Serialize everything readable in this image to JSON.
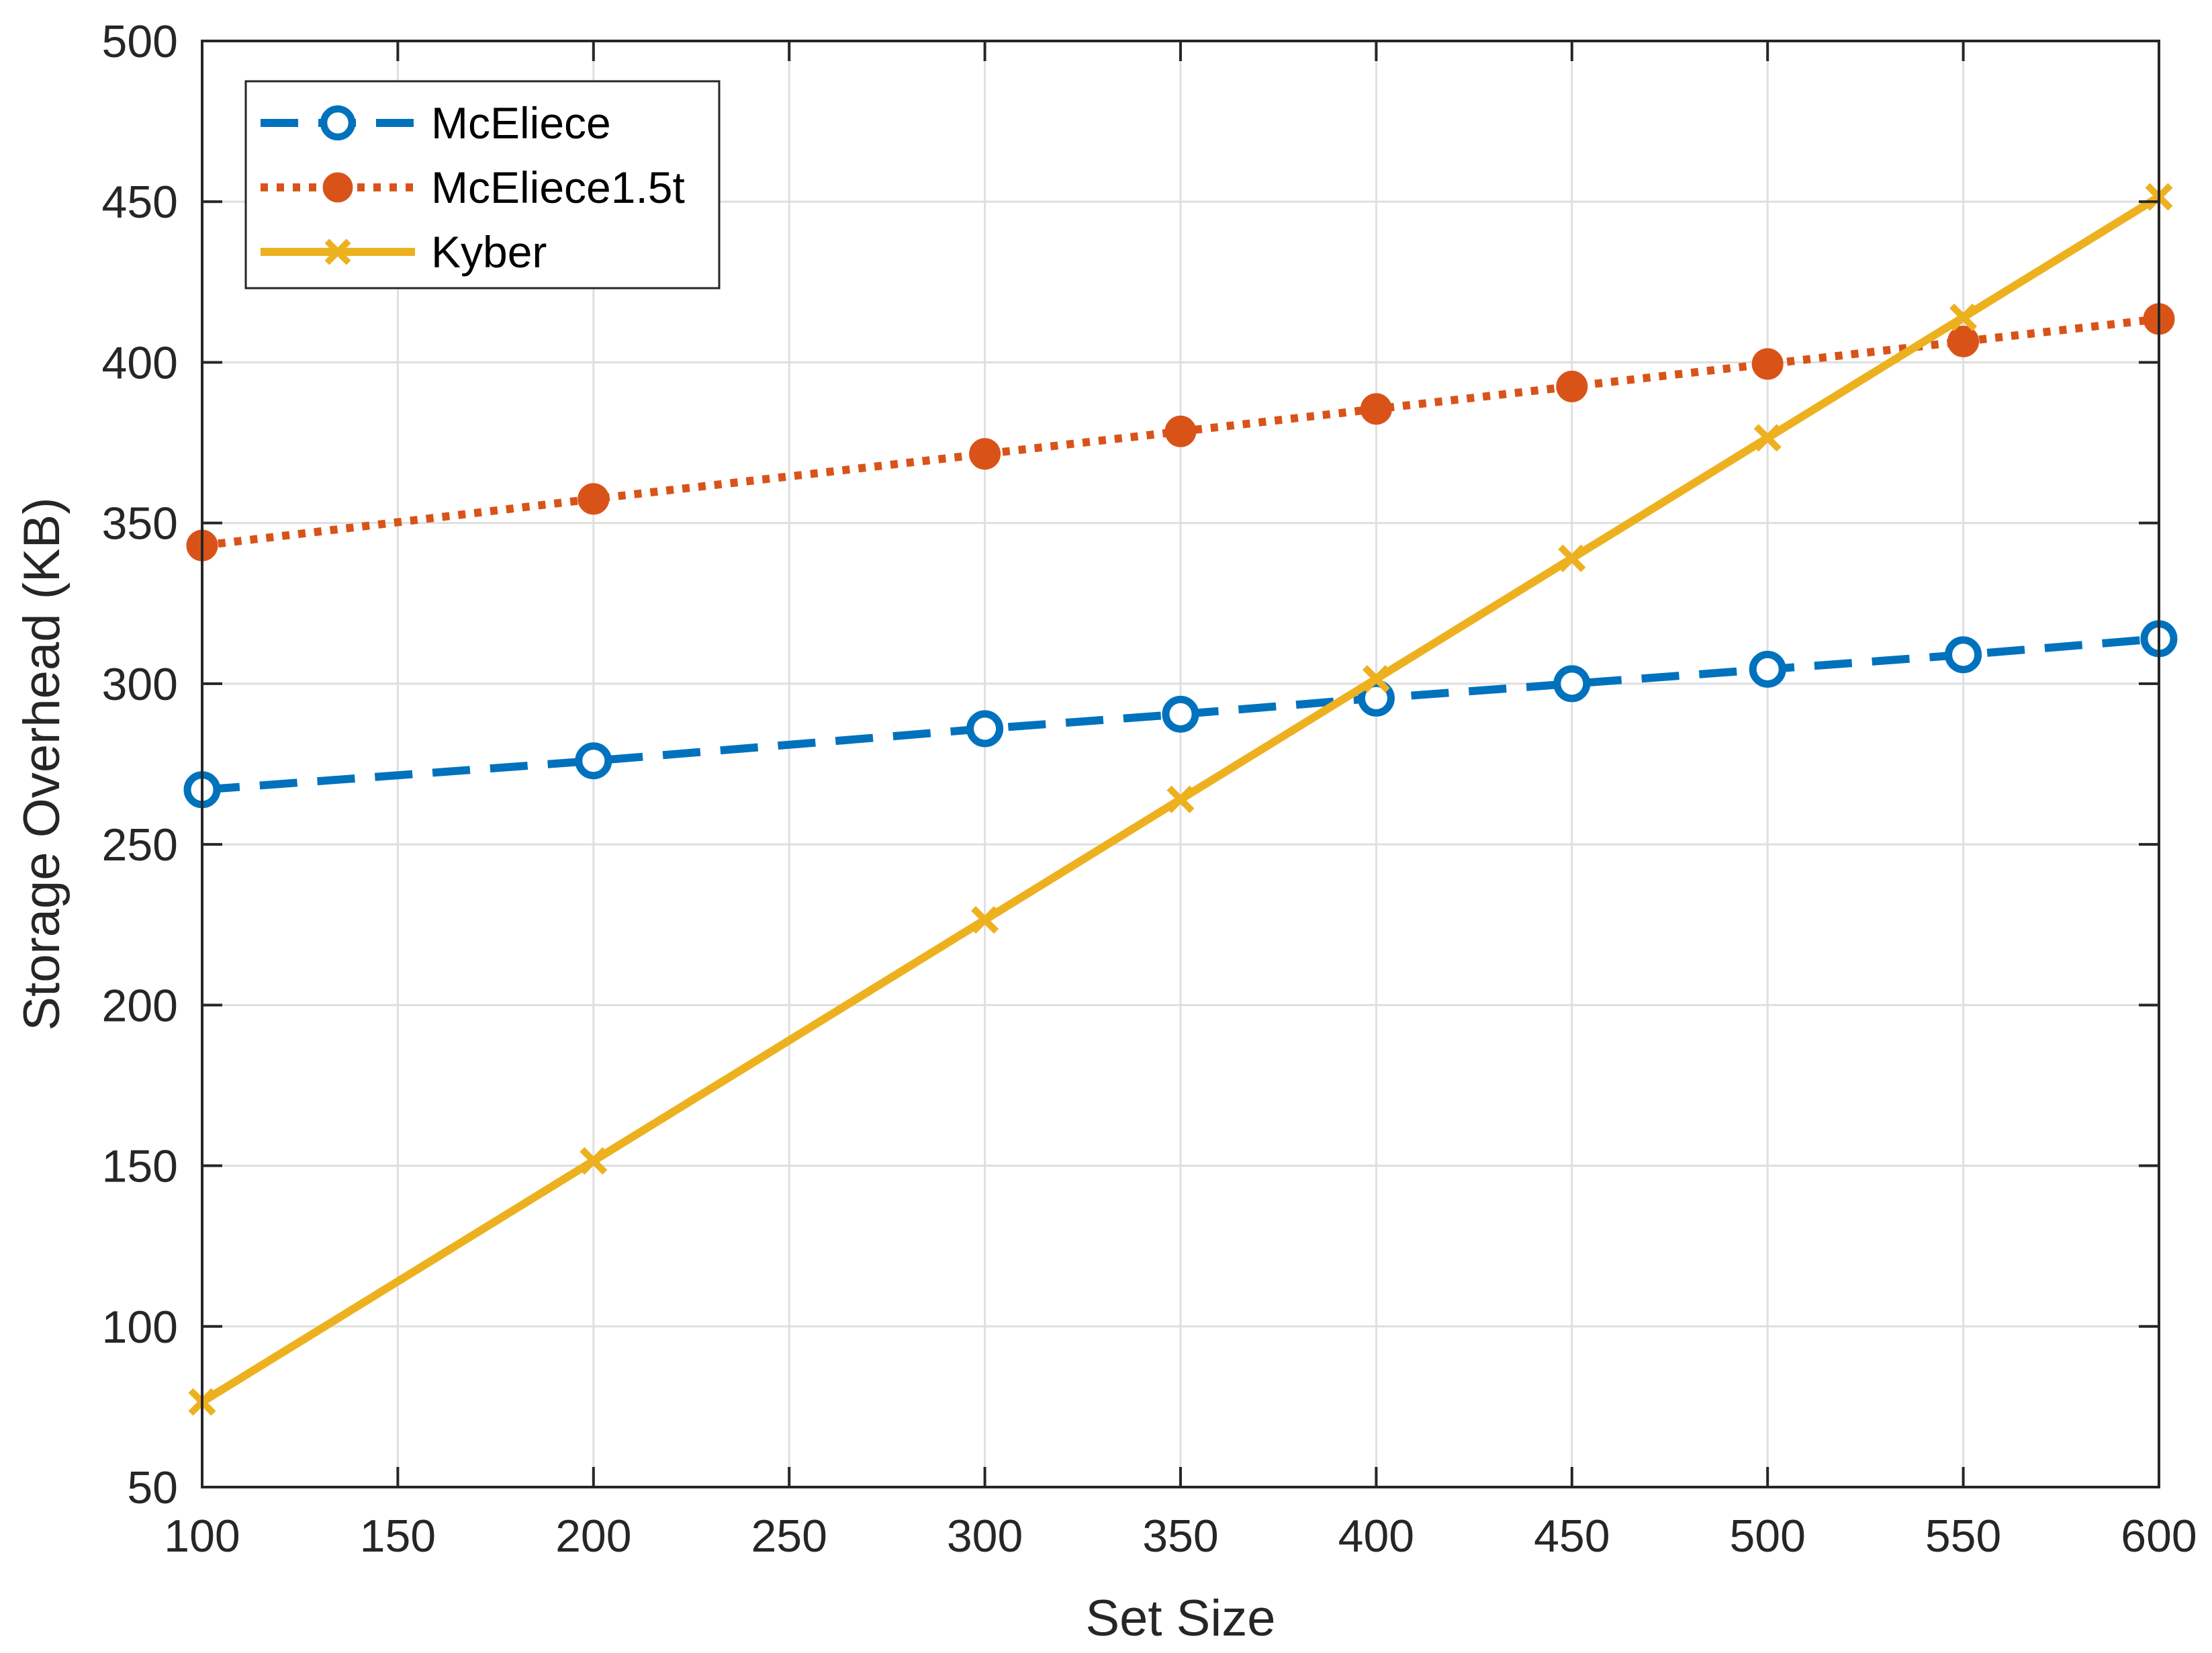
{
  "chart_data": {
    "type": "line",
    "title": "",
    "xlabel": "Set Size",
    "ylabel": "Storage Overhead (KB)",
    "xlim": [
      100,
      600
    ],
    "ylim": [
      50,
      500
    ],
    "xticks": [
      100,
      150,
      200,
      250,
      300,
      350,
      400,
      450,
      500,
      550,
      600
    ],
    "yticks": [
      50,
      100,
      150,
      200,
      250,
      300,
      350,
      400,
      450,
      500
    ],
    "grid": true,
    "legend_position": "top-left",
    "x": [
      100,
      200,
      300,
      350,
      400,
      450,
      500,
      550,
      600
    ],
    "series": [
      {
        "name": "McEliece",
        "values": [
          267,
          276,
          286,
          290.5,
          295.5,
          300,
          304.5,
          309,
          314
        ],
        "color": "#0072BD",
        "line_style": "dashed",
        "marker": "circle-open"
      },
      {
        "name": "McEliece1.5t",
        "values": [
          343,
          357.5,
          371.5,
          378.5,
          385.5,
          392.5,
          399.5,
          406.5,
          413.5
        ],
        "color": "#D95319",
        "line_style": "dotted",
        "marker": "circle-filled"
      },
      {
        "name": "Kyber",
        "values": [
          76.5,
          151.5,
          226.5,
          264,
          301.5,
          339,
          376.5,
          414,
          451.5
        ],
        "color": "#EDB120",
        "line_style": "solid",
        "marker": "x"
      }
    ]
  }
}
